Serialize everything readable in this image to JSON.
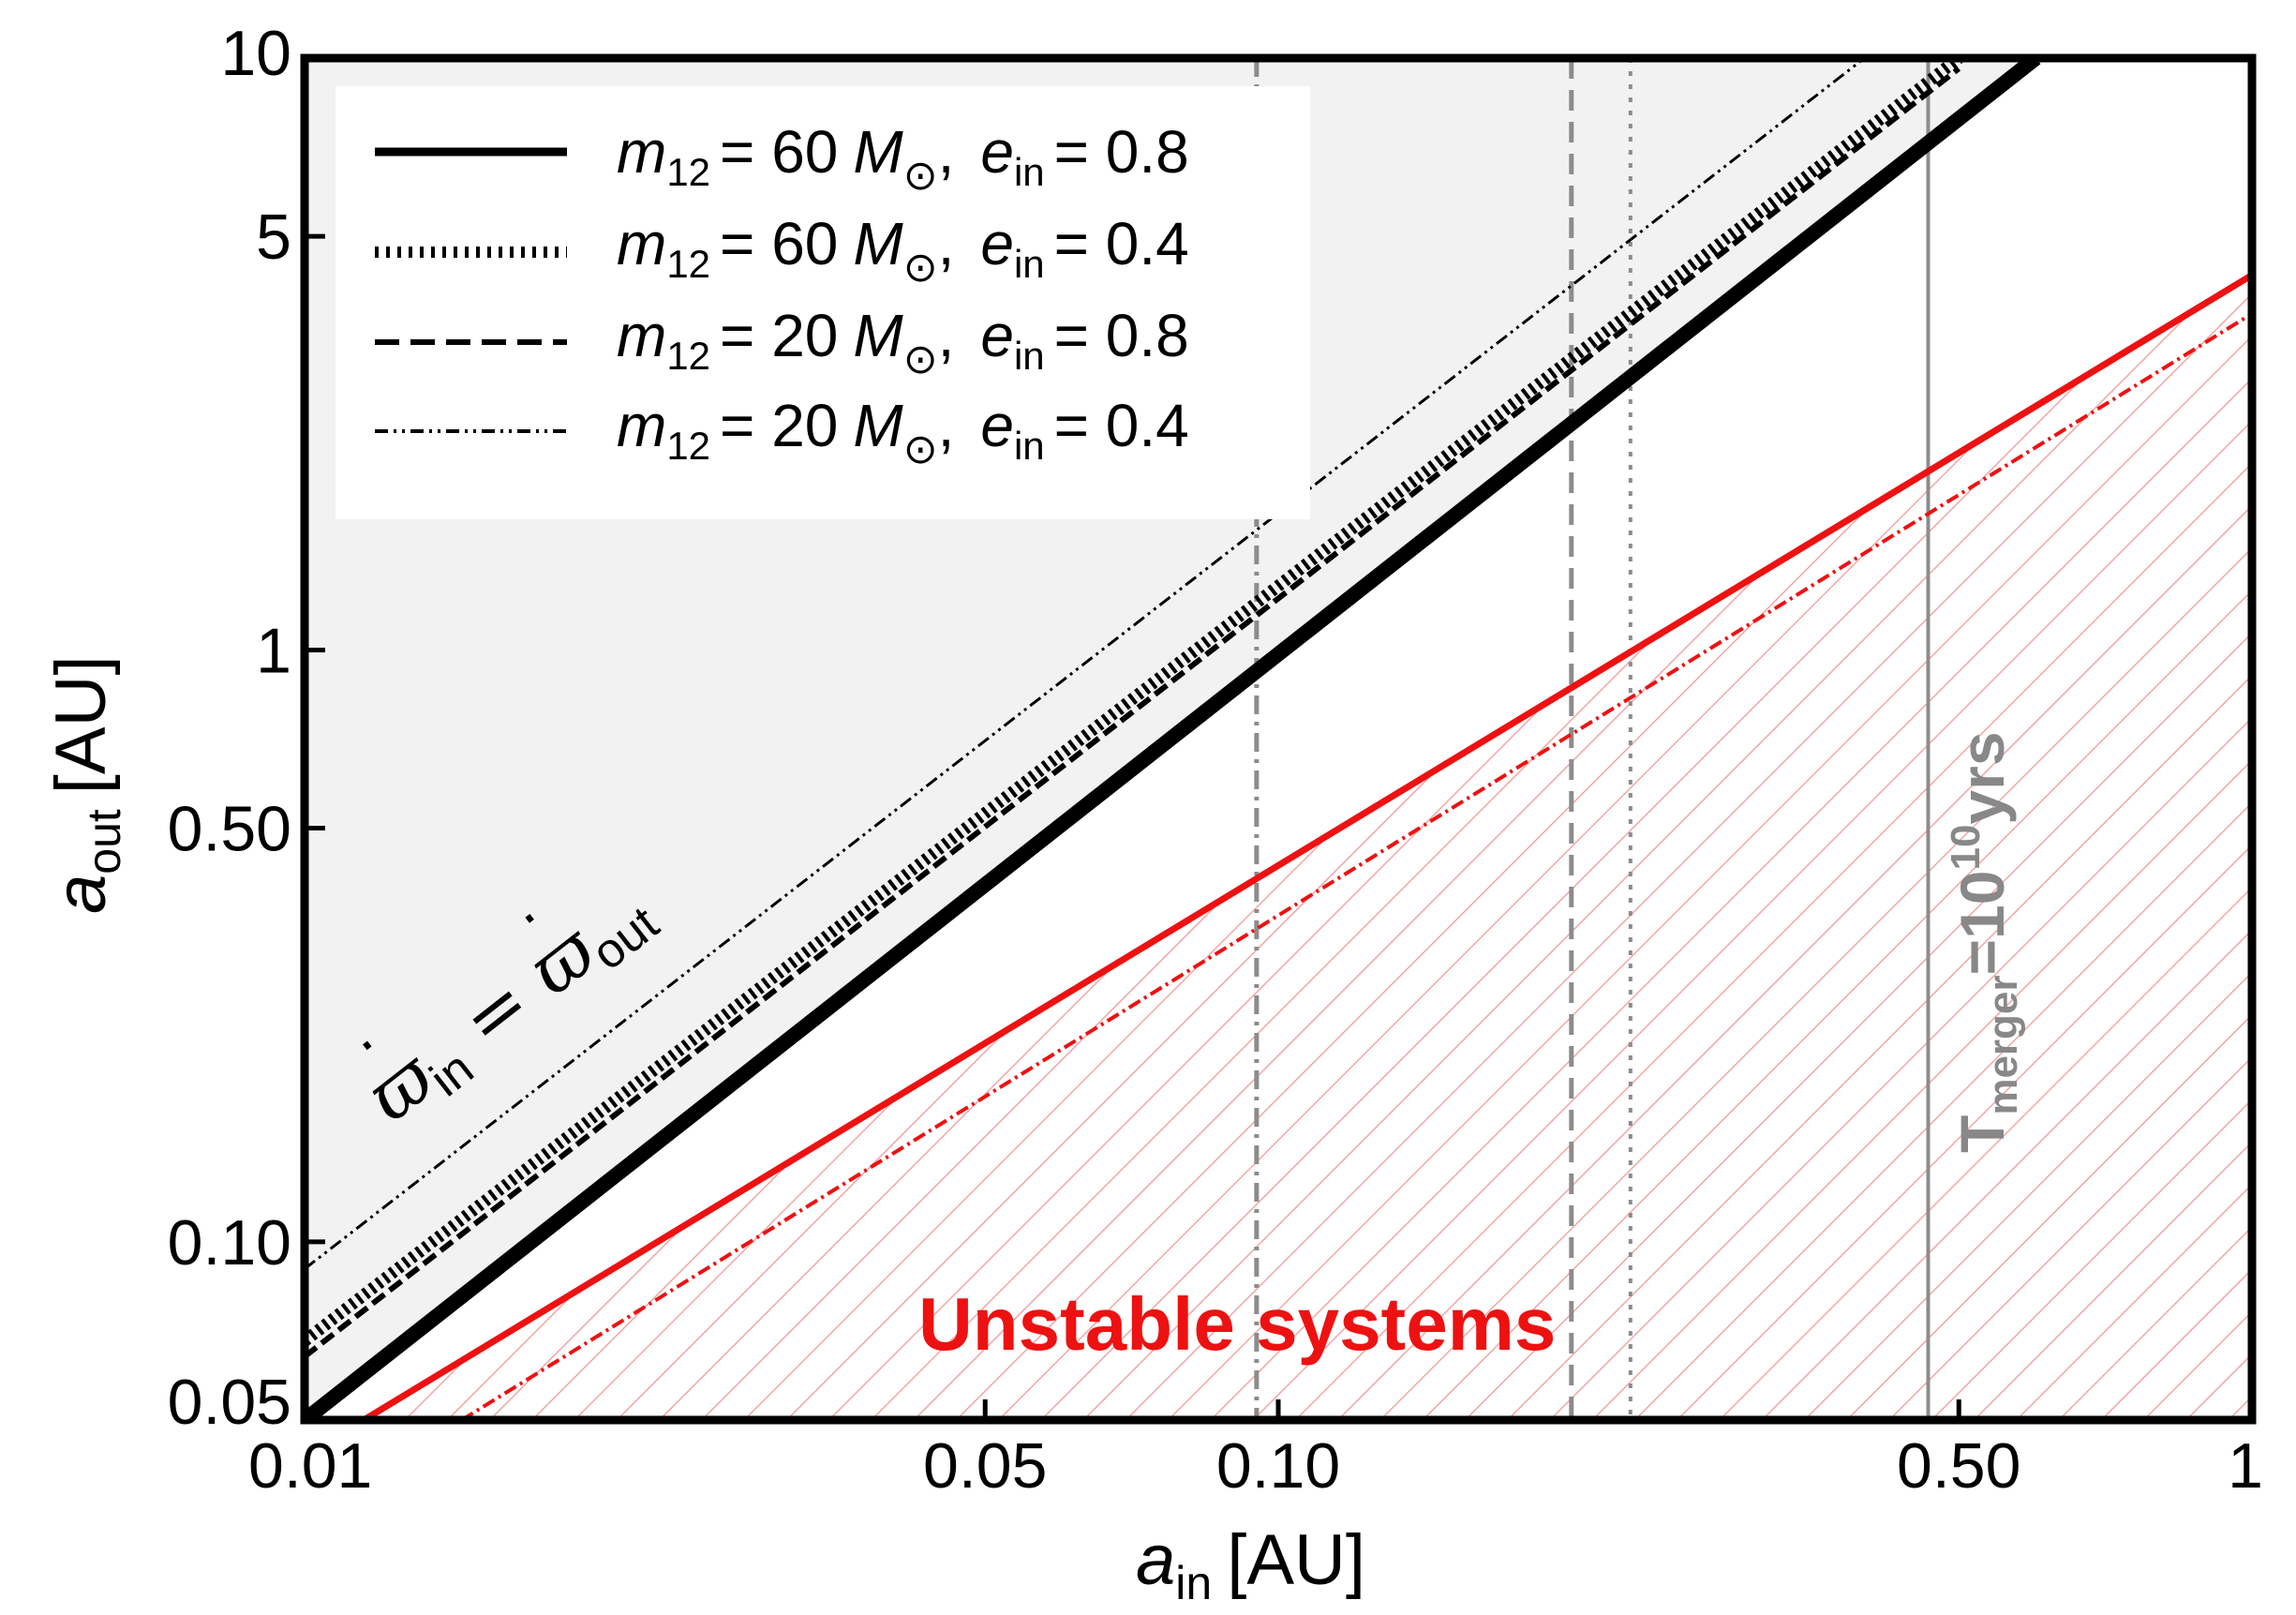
{
  "chart_data": {
    "type": "line",
    "xlabel": {
      "var": "a",
      "sub": "in",
      "unit": "[AU]"
    },
    "ylabel": {
      "var": "a",
      "sub": "out",
      "unit": "[AU]"
    },
    "xscale": "log",
    "yscale": "log",
    "xlim": [
      0.01,
      1
    ],
    "ylim": [
      0.05,
      10
    ],
    "xticks": [
      {
        "value": 0.01,
        "label": "0.01"
      },
      {
        "value": 0.05,
        "label": "0.05"
      },
      {
        "value": 0.1,
        "label": "0.10"
      },
      {
        "value": 0.5,
        "label": "0.50"
      },
      {
        "value": 1,
        "label": "1"
      }
    ],
    "yticks": [
      {
        "value": 0.05,
        "label": "0.05"
      },
      {
        "value": 0.1,
        "label": "0.10"
      },
      {
        "value": 0.5,
        "label": "0.50"
      },
      {
        "value": 1,
        "label": "1"
      },
      {
        "value": 5,
        "label": "5"
      },
      {
        "value": 10,
        "label": "10"
      }
    ],
    "series": [
      {
        "name": "m12 = 60 Msun, e_in = 0.8",
        "m_label": "m",
        "m_sub": "12",
        "mass": "= 60",
        "e_sub": "in",
        "e_val": "= 0.8",
        "style": "solid-thick",
        "x": [
          0.01,
          0.6
        ],
        "y": [
          0.05,
          10
        ]
      },
      {
        "name": "m12 = 60 Msun, e_in = 0.4",
        "m_label": "m",
        "m_sub": "12",
        "mass": "= 60",
        "e_sub": "in",
        "e_val": "= 0.4",
        "style": "dotted-thick",
        "x": [
          0.01,
          0.5
        ],
        "y": [
          0.068,
          10
        ]
      },
      {
        "name": "m12 = 20 Msun, e_in = 0.8",
        "m_label": "m",
        "m_sub": "12",
        "mass": "= 20",
        "e_sub": "in",
        "e_val": "= 0.8",
        "style": "dashed",
        "x": [
          0.01,
          0.5
        ],
        "y": [
          0.064,
          9.6
        ]
      },
      {
        "name": "m12 = 20 Msun, e_in = 0.4",
        "m_label": "m",
        "m_sub": "12",
        "mass": "= 20",
        "e_sub": "in",
        "e_val": "= 0.4",
        "style": "dashdot-thin",
        "x": [
          0.01,
          0.4
        ],
        "y": [
          0.09,
          10
        ]
      }
    ],
    "stability_lines": [
      {
        "style": "red-solid",
        "x": [
          0.0115,
          1
        ],
        "y": [
          0.05,
          4.3
        ]
      },
      {
        "style": "red-dashdot",
        "x": [
          0.0145,
          1
        ],
        "y": [
          0.05,
          3.7
        ]
      }
    ],
    "vertical_lines": [
      {
        "style": "gray-solid",
        "x": 0.465
      },
      {
        "style": "gray-dashed",
        "x": 0.2
      },
      {
        "style": "gray-dotted",
        "x": 0.23
      },
      {
        "style": "gray-dashdot",
        "x": 0.095
      }
    ],
    "regions": [
      {
        "name": "secular-region",
        "fill": "#f2f2f2"
      },
      {
        "name": "unstable-region",
        "hatch": "#f4a5a5"
      }
    ],
    "annotations": {
      "unstable": "Unstable systems",
      "merger": {
        "T": "T",
        "sub": "merger",
        "eq": "=10",
        "sup": "10",
        "unit": "yrs"
      },
      "precession": {
        "lhs": "ϖ",
        "lhs_sub": "in",
        "eq": " = ",
        "rhs": "ϖ",
        "rhs_sub": "out"
      }
    },
    "legend_position": "top-left",
    "msun_symbol": "M",
    "sun_symbol": "⊙"
  }
}
